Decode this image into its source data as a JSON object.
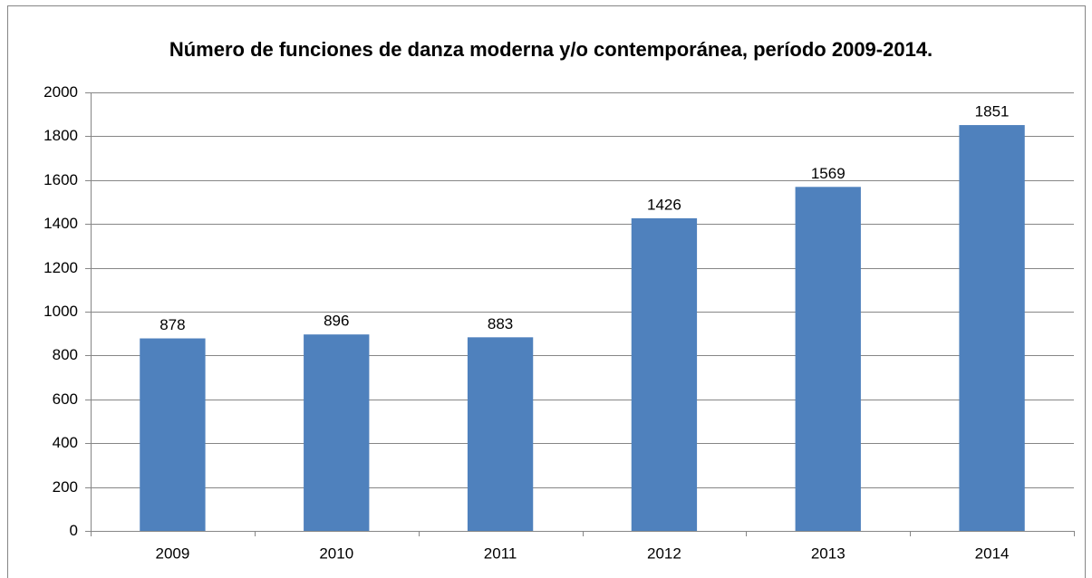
{
  "chart_data": {
    "type": "bar",
    "title": "Número de funciones de danza moderna y/o contemporánea, período 2009-2014.",
    "categories": [
      "2009",
      "2010",
      "2011",
      "2012",
      "2013",
      "2014"
    ],
    "values": [
      878,
      896,
      883,
      1426,
      1569,
      1851
    ],
    "color": "#4f81bd",
    "ylim": [
      0,
      2000
    ],
    "yticks": [
      0,
      200,
      400,
      600,
      800,
      1000,
      1200,
      1400,
      1600,
      1800,
      2000
    ],
    "grid": true,
    "data_labels": true
  }
}
